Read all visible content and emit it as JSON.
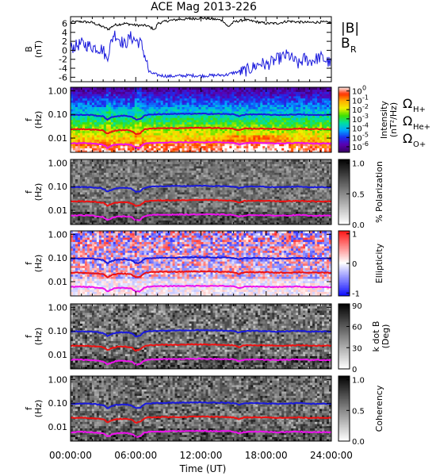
{
  "title": "ACE Mag 2013-226",
  "x_axis": {
    "label": "Time (UT)",
    "ticks": [
      "00:00:00",
      "06:00:00",
      "12:00:00",
      "18:00:00",
      "24:00:00"
    ],
    "range_hours": [
      0,
      24
    ]
  },
  "chart_data": [
    {
      "type": "line",
      "panel": "magnetic field",
      "ylabel_top": "B",
      "ylabel_bottom": "(nT)",
      "ylim": [
        -7,
        7.5
      ],
      "yticks": [
        "6",
        "4",
        "2",
        "0",
        "-2",
        "-4",
        "-6"
      ],
      "ytick_values": [
        6,
        4,
        2,
        0,
        -2,
        -4,
        -6
      ],
      "legend": [
        {
          "label": "|B|",
          "color": "#000000"
        },
        {
          "label": "B",
          "subscript": "R",
          "color": "#1a1adc"
        }
      ],
      "series": [
        {
          "name": "|B|",
          "color": "#000000",
          "x": [
            0,
            1,
            2,
            3,
            3.5,
            4,
            5,
            6,
            7,
            7.8,
            8,
            9,
            10,
            11,
            12,
            13,
            14,
            14.5,
            15,
            16,
            17,
            18,
            19,
            20,
            21,
            22,
            23,
            24
          ],
          "y": [
            6.3,
            6.4,
            6.2,
            5.2,
            4.7,
            5.6,
            6.0,
            5.6,
            5.5,
            4.6,
            6.0,
            6.6,
            6.9,
            7.0,
            7.2,
            7.0,
            6.7,
            5.2,
            6.3,
            6.8,
            6.4,
            6.0,
            6.0,
            6.5,
            6.3,
            6.2,
            6.3,
            6.2
          ]
        },
        {
          "name": "B_R",
          "color": "#1a1adc",
          "x": [
            0,
            1,
            2,
            3,
            3.3,
            3.6,
            4,
            4.5,
            5,
            5.5,
            6,
            6.5,
            7,
            7.2,
            7.6,
            8,
            9,
            10,
            11,
            12,
            13,
            14,
            14.5,
            15,
            16,
            16.5,
            17,
            17.5,
            18,
            19,
            20,
            21,
            21.5,
            22,
            23,
            24
          ],
          "y": [
            0.5,
            1.5,
            0.8,
            0.2,
            -2,
            0.5,
            3.8,
            2.5,
            1.2,
            3.0,
            2.2,
            1.5,
            -2.5,
            -4.8,
            -5.2,
            -5.5,
            -5.8,
            -5.7,
            -5.6,
            -5.7,
            -5.6,
            -5.5,
            -5.4,
            -5.0,
            -4.6,
            -4.2,
            -3.5,
            -2.8,
            -3.3,
            -2.0,
            -1.0,
            -3.2,
            -1.8,
            -2.5,
            -1.5,
            -3.0
          ]
        }
      ]
    },
    {
      "type": "heatmap",
      "panel": "power spectrum",
      "ylabel_top": "f",
      "ylabel_bottom": "(Hz)",
      "yscale": "log",
      "ylim": [
        0.0025,
        1.4
      ],
      "yticks": [
        "1.00",
        "0.10",
        "0.01"
      ],
      "ytick_values": [
        1,
        0.1,
        0.01
      ],
      "colorbar": {
        "label_line1": "Intensity",
        "label_line2": "(nT²/Hz)",
        "ticks": [
          {
            "base": "10",
            "exp": "0",
            "value": 0
          },
          {
            "base": "10",
            "exp": "-1",
            "value": -1
          },
          {
            "base": "10",
            "exp": "-2",
            "value": -2
          },
          {
            "base": "10",
            "exp": "-3",
            "value": -3
          },
          {
            "base": "10",
            "exp": "-4",
            "value": -4
          },
          {
            "base": "10",
            "exp": "-5",
            "value": -5
          },
          {
            "base": "10",
            "exp": "-6",
            "value": -6
          }
        ],
        "range_log10": [
          -6.6,
          0.4
        ],
        "colors": [
          "#3a0066",
          "#5a00b0",
          "#1a2ff0",
          "#00a8ff",
          "#00e0a0",
          "#40e000",
          "#f0f000",
          "#ffb000",
          "#ff3000",
          "#ffffff"
        ]
      },
      "legend": [
        {
          "label": "Ω",
          "subscript": "H+",
          "color": "#1a1adc"
        },
        {
          "label": "Ω",
          "subscript": "He+",
          "color": "#ee1111"
        },
        {
          "label": "Ω",
          "subscript": "O+",
          "color": "#ee11ee"
        }
      ]
    },
    {
      "type": "heatmap",
      "panel": "polarization",
      "ylabel_top": "f",
      "ylabel_bottom": "(Hz)",
      "yscale": "log",
      "yticks": [
        "1.00",
        "0.10",
        "0.01"
      ],
      "ytick_values": [
        1,
        0.1,
        0.01
      ],
      "colorbar": {
        "label_line1": "% Polarization",
        "ticks": [
          {
            "label": "1.0",
            "value": 1
          },
          {
            "label": "0.5",
            "value": 0.5
          },
          {
            "label": "0.0",
            "value": 0
          }
        ],
        "range": [
          0,
          1.06
        ],
        "colors": [
          "#ffffff",
          "#000000"
        ]
      }
    },
    {
      "type": "heatmap",
      "panel": "ellipticity",
      "ylabel_top": "f",
      "ylabel_bottom": "(Hz)",
      "yscale": "log",
      "yticks": [
        "1.00",
        "0.10",
        "0.01"
      ],
      "ytick_values": [
        1,
        0.1,
        0.01
      ],
      "colorbar": {
        "label_line1": "Ellipticity",
        "ticks": [
          {
            "label": "1",
            "value": 1
          },
          {
            "label": "0",
            "value": 0
          },
          {
            "label": "-1",
            "value": -1
          }
        ],
        "range": [
          -1.1,
          1.1
        ],
        "colors": [
          "#1010ff",
          "#ffffff",
          "#ff1010"
        ]
      }
    },
    {
      "type": "heatmap",
      "panel": "wave normal angle",
      "ylabel_top": "f",
      "ylabel_bottom": "(Hz)",
      "yscale": "log",
      "yticks": [
        "1.00",
        "0.10",
        "0.01"
      ],
      "ytick_values": [
        1,
        0.1,
        0.01
      ],
      "colorbar": {
        "label_line1": "k dot B",
        "label_line2": "(Deg)",
        "ticks": [
          {
            "label": "90",
            "value": 90
          },
          {
            "label": "60",
            "value": 60
          },
          {
            "label": "30",
            "value": 30
          },
          {
            "label": "0",
            "value": 0
          }
        ],
        "range": [
          0,
          92
        ],
        "colors": [
          "#ffffff",
          "#000000"
        ]
      }
    },
    {
      "type": "heatmap",
      "panel": "coherency",
      "ylabel_top": "f",
      "ylabel_bottom": "(Hz)",
      "yscale": "log",
      "yticks": [
        "1.00",
        "0.10",
        "0.01"
      ],
      "ytick_values": [
        1,
        0.1,
        0.01
      ],
      "colorbar": {
        "label_line1": "Coherency",
        "ticks": [
          {
            "label": "1.0",
            "value": 1
          },
          {
            "label": "0.5",
            "value": 0.5
          },
          {
            "label": "0.0",
            "value": 0
          }
        ],
        "range": [
          0,
          1.06
        ],
        "colors": [
          "#ffffff",
          "#000000"
        ]
      }
    }
  ],
  "cyclotron_frequencies": {
    "x": [
      0,
      1,
      2,
      3,
      3.4,
      3.8,
      4.2,
      5,
      5.6,
      6,
      6.4,
      6.8,
      7.2,
      8,
      9,
      10,
      11,
      12,
      13,
      14,
      15,
      15.5,
      16,
      17,
      18,
      19,
      20,
      21,
      22,
      23,
      24
    ],
    "H+": [
      0.094,
      0.096,
      0.094,
      0.082,
      0.06,
      0.075,
      0.085,
      0.088,
      0.082,
      0.06,
      0.062,
      0.09,
      0.098,
      0.102,
      0.104,
      0.105,
      0.106,
      0.107,
      0.106,
      0.105,
      0.1,
      0.085,
      0.098,
      0.101,
      0.098,
      0.094,
      0.097,
      0.101,
      0.094,
      0.095,
      0.094
    ],
    "He+": [
      0.024,
      0.024,
      0.023,
      0.021,
      0.015,
      0.019,
      0.021,
      0.022,
      0.02,
      0.015,
      0.016,
      0.023,
      0.025,
      0.026,
      0.026,
      0.026,
      0.027,
      0.027,
      0.027,
      0.026,
      0.025,
      0.021,
      0.025,
      0.025,
      0.025,
      0.024,
      0.024,
      0.025,
      0.024,
      0.024,
      0.024
    ],
    "O+": [
      0.006,
      0.0061,
      0.0059,
      0.0052,
      0.0038,
      0.0047,
      0.0054,
      0.0055,
      0.0051,
      0.0038,
      0.0039,
      0.0057,
      0.0062,
      0.0064,
      0.0065,
      0.0066,
      0.0066,
      0.0067,
      0.0066,
      0.0066,
      0.0063,
      0.0053,
      0.0061,
      0.0063,
      0.0061,
      0.0059,
      0.0061,
      0.0063,
      0.0059,
      0.006,
      0.0059
    ]
  }
}
